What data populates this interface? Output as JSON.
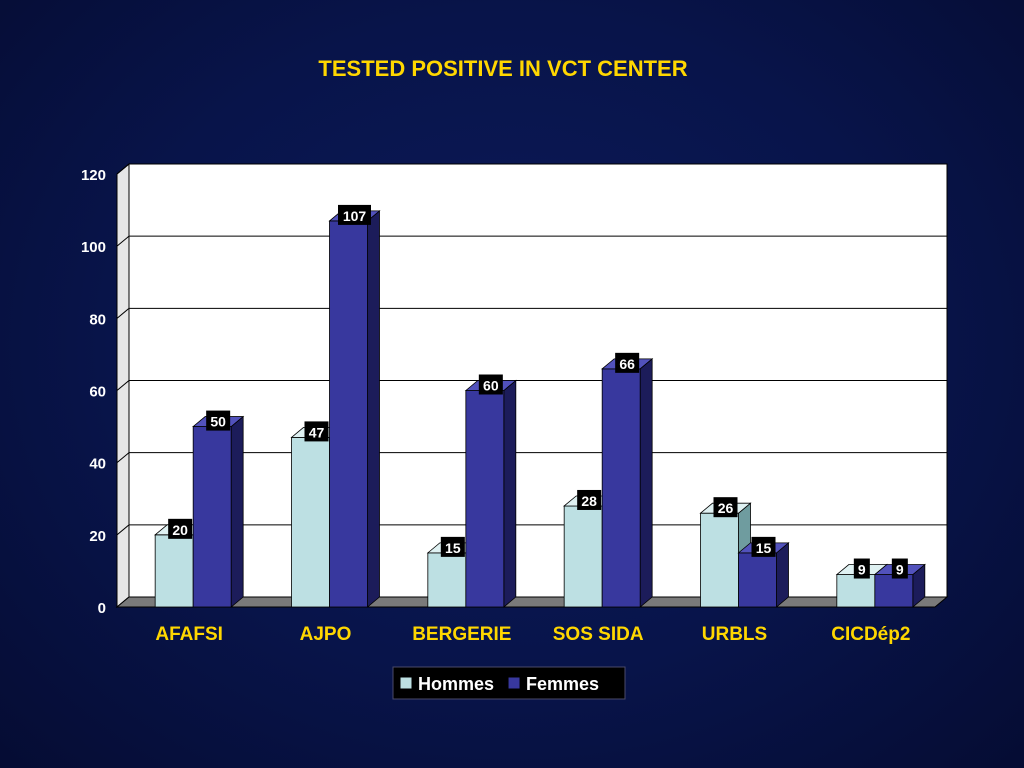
{
  "chart_data": {
    "type": "bar",
    "title": "TESTED POSITIVE  IN VCT CENTER",
    "categories": [
      "AFAFSI",
      "AJPO",
      "BERGERIE",
      "SOS SIDA",
      "URBLS",
      "CICDép2"
    ],
    "series": [
      {
        "name": "Hommes",
        "values": [
          20,
          47,
          15,
          28,
          26,
          9
        ],
        "color": "#bde0e3",
        "side_color": "#6f9c9f",
        "top_color": "#dff1f2"
      },
      {
        "name": "Femmes",
        "values": [
          50,
          107,
          60,
          66,
          15,
          9
        ],
        "color": "#38389e",
        "side_color": "#1c1c5a",
        "top_color": "#5252bc"
      }
    ],
    "yticks": [
      0,
      20,
      40,
      60,
      80,
      100,
      120
    ],
    "ylim": [
      0,
      120
    ],
    "grid": true,
    "legend_position": "bottom",
    "title_color": "#ffd700",
    "category_label_color": "#ffd700",
    "plot_background": "#ffffff",
    "floor_color": "#7a7a7a"
  }
}
